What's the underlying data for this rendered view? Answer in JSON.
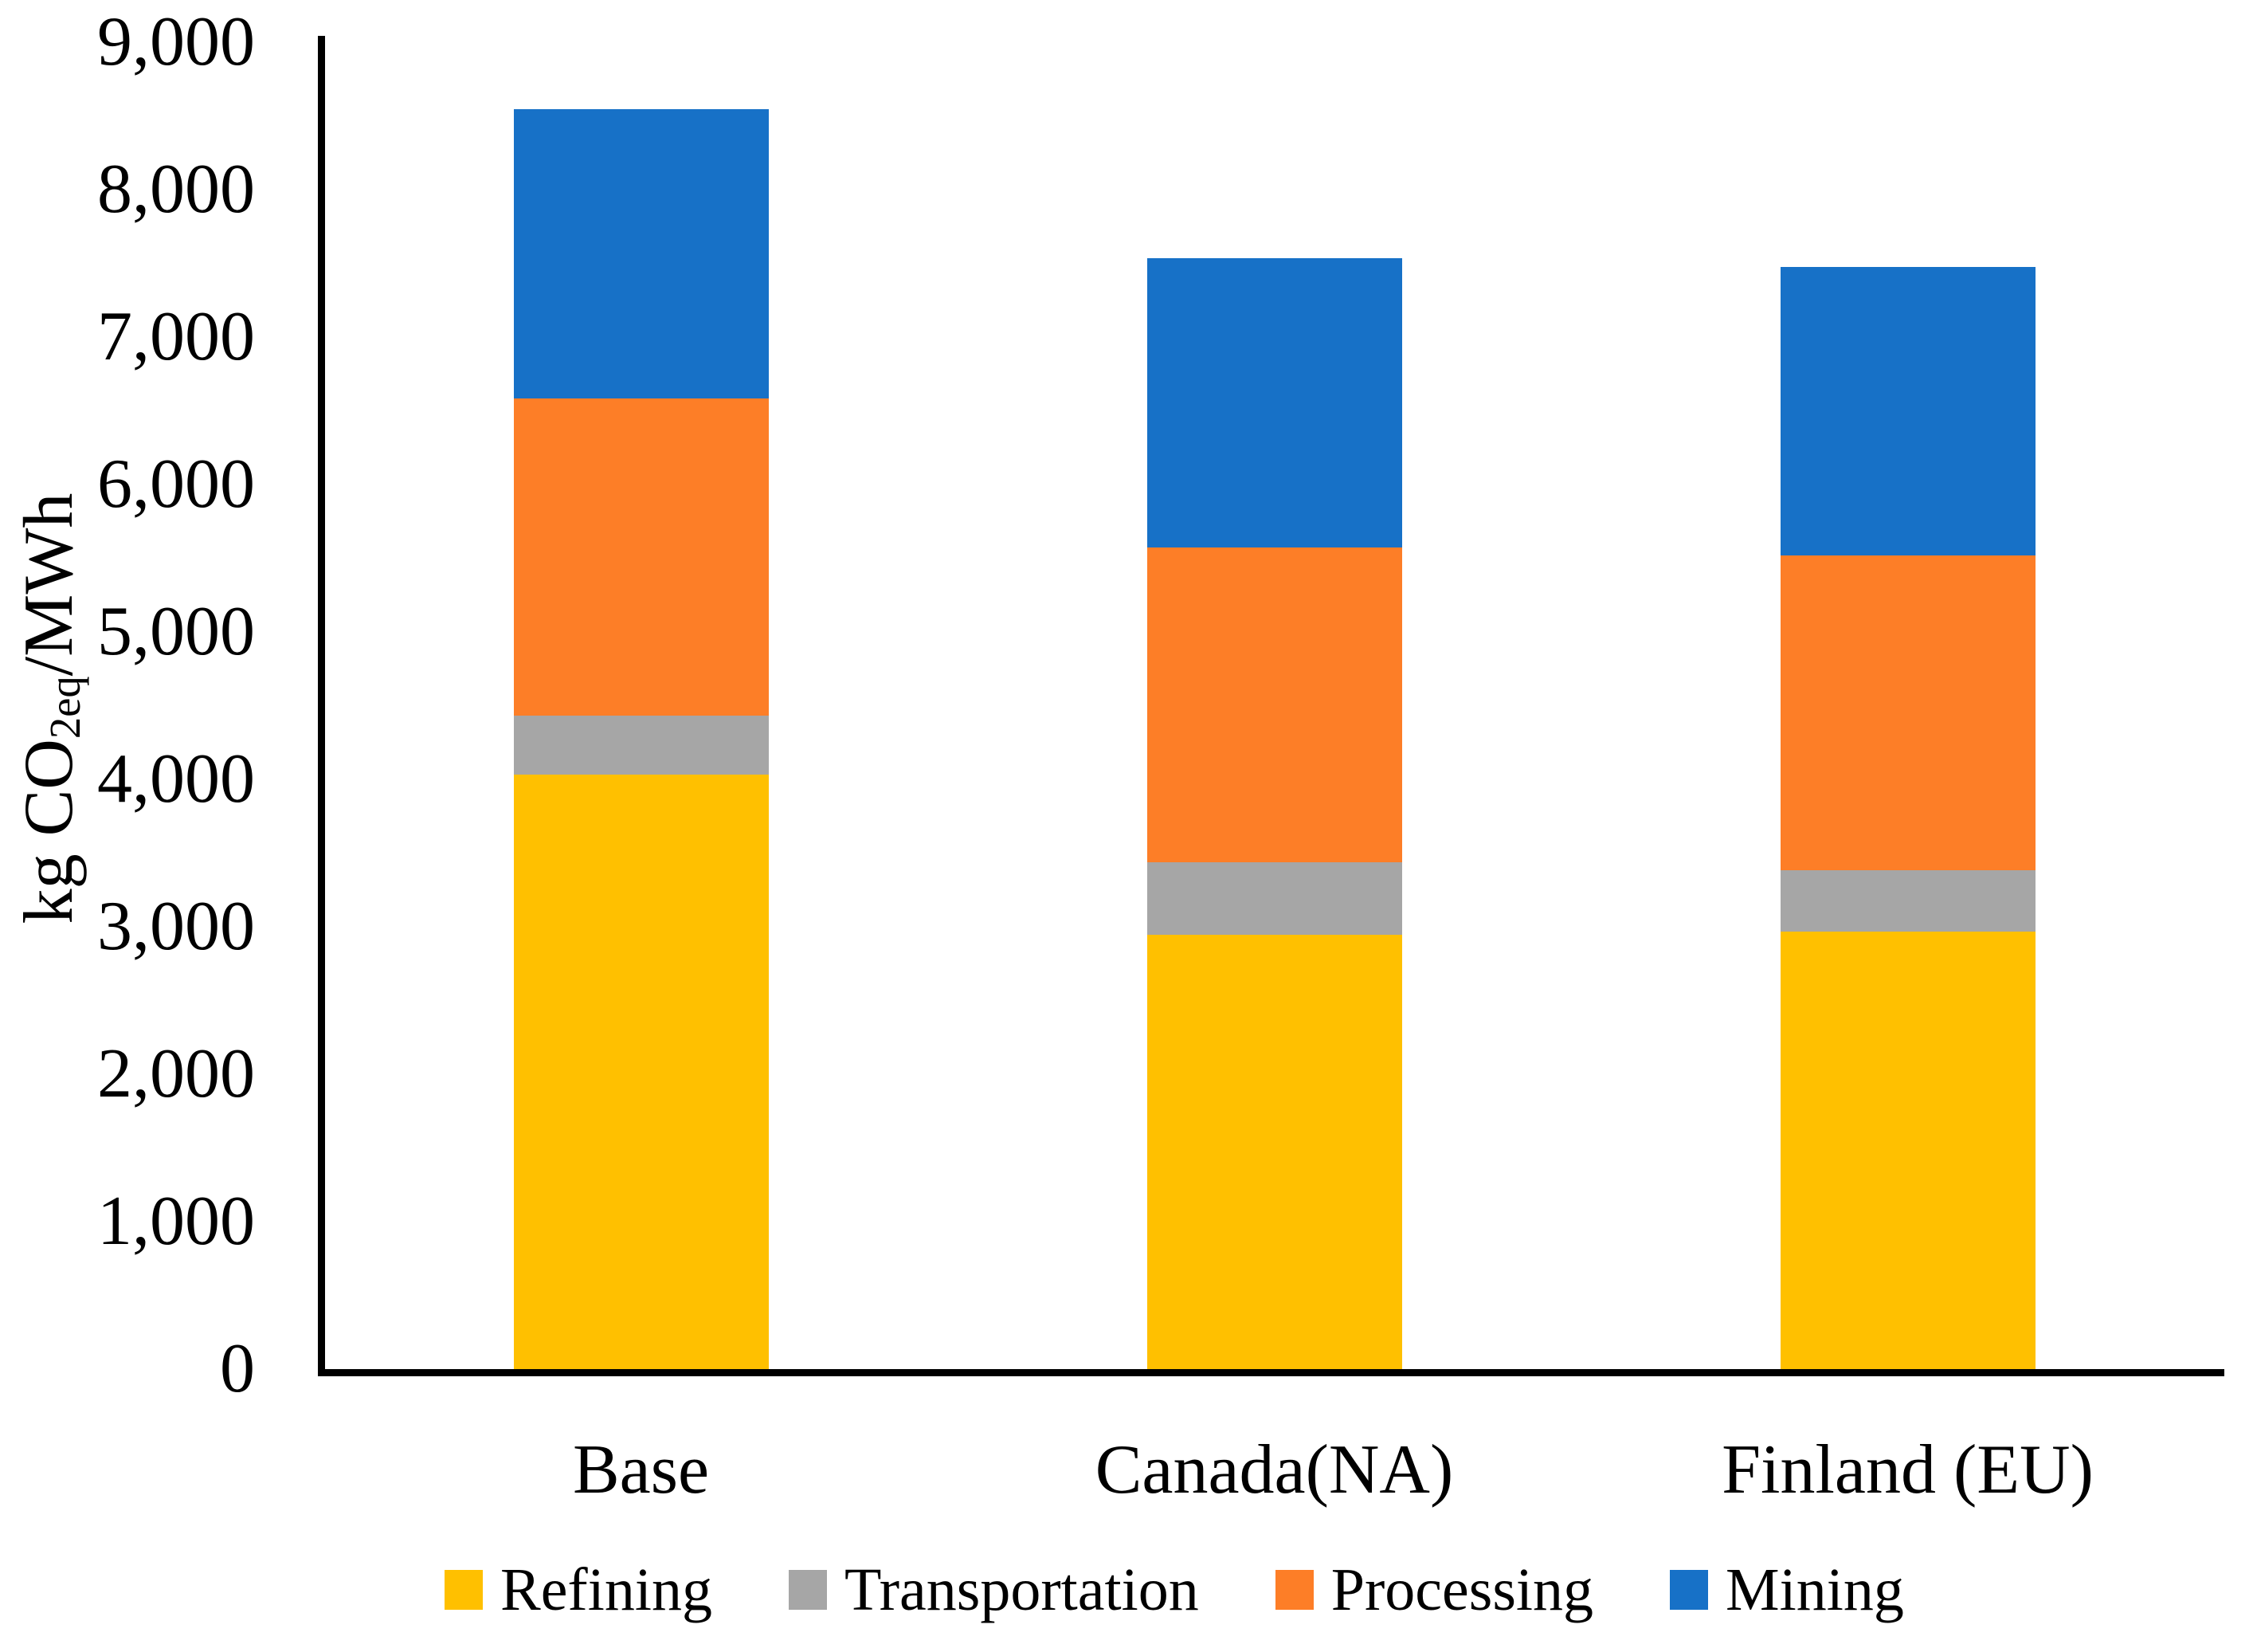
{
  "chart_data": {
    "type": "bar",
    "stacked": true,
    "title": "",
    "categories": [
      "Base",
      "Canada(NA)",
      "Finland (EU)"
    ],
    "series": [
      {
        "name": "Refining",
        "color": "#FFC000",
        "values": [
          4030,
          2945,
          2970
        ]
      },
      {
        "name": "Transportation",
        "color": "#A6A6A6",
        "values": [
          405,
          495,
          415
        ]
      },
      {
        "name": "Processing",
        "color": "#FD7E27",
        "values": [
          2150,
          2135,
          2135
        ]
      },
      {
        "name": "Mining",
        "color": "#1771C7",
        "values": [
          1960,
          1960,
          1955
        ]
      }
    ],
    "ylabel": "kg CO2eq/MWh",
    "ylabel_parts": {
      "prefix": "kg CO",
      "subscript": "2eq",
      "suffix": "/MWh"
    },
    "ylim": [
      0,
      9000
    ],
    "ytick_step": 1000,
    "yticks": [
      "0",
      "1,000",
      "2,000",
      "3,000",
      "4,000",
      "5,000",
      "6,000",
      "7,000",
      "8,000",
      "9,000"
    ],
    "grid": false,
    "legend_position": "bottom",
    "axis_color": "#000000"
  }
}
